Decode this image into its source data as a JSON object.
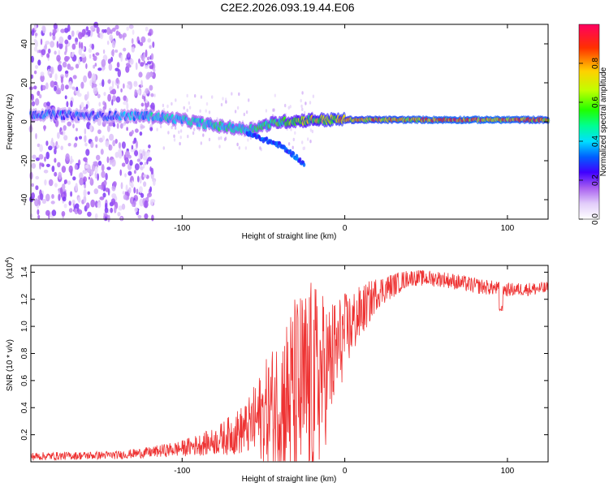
{
  "title": "C2E2.2026.093.19.44.E06",
  "chart_data": [
    {
      "type": "heatmap",
      "name": "spectrogram",
      "xlabel": "Height of straight line (km)",
      "ylabel": "Frequency (Hz)",
      "xlim": [
        -193,
        125
      ],
      "ylim": [
        -50,
        50
      ],
      "xticks": [
        -100,
        0,
        100
      ],
      "xtick_labels": [
        "-100",
        "0",
        "100"
      ],
      "yticks": [
        -40,
        -20,
        0,
        20,
        40
      ],
      "ytick_labels": [
        "-40",
        "-20",
        "0",
        "20",
        "40"
      ],
      "colorbar": {
        "label": "Normalized spectral amplitude",
        "range": [
          0,
          1
        ],
        "ticks": [
          0.0,
          0.2,
          0.4,
          0.6,
          0.8
        ],
        "tick_labels": [
          "0.0",
          "0.2",
          "0.4",
          "0.6",
          "0.8"
        ]
      },
      "main_ridge": [
        {
          "x": -193,
          "f": 4,
          "amp": 0.35
        },
        {
          "x": -150,
          "f": 3,
          "amp": 0.3
        },
        {
          "x": -120,
          "f": 3,
          "amp": 0.45
        },
        {
          "x": -100,
          "f": 1,
          "amp": 0.45
        },
        {
          "x": -80,
          "f": -2,
          "amp": 0.5
        },
        {
          "x": -60,
          "f": -4,
          "amp": 0.5
        },
        {
          "x": -40,
          "f": 0,
          "amp": 0.6
        },
        {
          "x": -20,
          "f": 1,
          "amp": 0.7
        },
        {
          "x": 0,
          "f": 1,
          "amp": 0.8
        },
        {
          "x": 30,
          "f": 1,
          "amp": 0.85
        },
        {
          "x": 60,
          "f": 1,
          "amp": 0.9
        },
        {
          "x": 100,
          "f": 1,
          "amp": 0.9
        },
        {
          "x": 125,
          "f": 1,
          "amp": 0.85
        }
      ],
      "branch": [
        {
          "x": -60,
          "f": -6
        },
        {
          "x": -40,
          "f": -12
        },
        {
          "x": -30,
          "f": -18
        },
        {
          "x": -25,
          "f": -22
        }
      ],
      "noise_region_x": [
        -193,
        -117
      ]
    },
    {
      "type": "line",
      "name": "snr",
      "xlabel": "Height of straight line (km)",
      "ylabel": "SNR (10 * v/v)",
      "multiplier": "(x10",
      "multiplier_exp": "4",
      "multiplier_close": ")",
      "xlim": [
        -193,
        125
      ],
      "ylim": [
        0,
        1.45
      ],
      "xticks": [
        -100,
        0,
        100
      ],
      "xtick_labels": [
        "-100",
        "0",
        "100"
      ],
      "yticks": [
        0.2,
        0.4,
        0.6,
        0.8,
        1.0,
        1.2,
        1.4
      ],
      "ytick_labels": [
        "0.2",
        "0.4",
        "0.6",
        "0.8",
        "1.0",
        "1.2",
        "1.4"
      ],
      "color": "#ee3333",
      "envelope": [
        {
          "x": -193,
          "base": 0.04,
          "spread": 0.03
        },
        {
          "x": -140,
          "base": 0.05,
          "spread": 0.03
        },
        {
          "x": -120,
          "base": 0.07,
          "spread": 0.04
        },
        {
          "x": -100,
          "base": 0.1,
          "spread": 0.06
        },
        {
          "x": -80,
          "base": 0.15,
          "spread": 0.1
        },
        {
          "x": -60,
          "base": 0.25,
          "spread": 0.2
        },
        {
          "x": -45,
          "base": 0.4,
          "spread": 0.45
        },
        {
          "x": -30,
          "base": 0.5,
          "spread": 0.75
        },
        {
          "x": -20,
          "base": 0.55,
          "spread": 0.8
        },
        {
          "x": -10,
          "base": 0.7,
          "spread": 0.5
        },
        {
          "x": 0,
          "base": 0.95,
          "spread": 0.3
        },
        {
          "x": 10,
          "base": 1.1,
          "spread": 0.2
        },
        {
          "x": 20,
          "base": 1.25,
          "spread": 0.12
        },
        {
          "x": 40,
          "base": 1.36,
          "spread": 0.06
        },
        {
          "x": 60,
          "base": 1.35,
          "spread": 0.06
        },
        {
          "x": 80,
          "base": 1.3,
          "spread": 0.06
        },
        {
          "x": 100,
          "base": 1.27,
          "spread": 0.05
        },
        {
          "x": 125,
          "base": 1.28,
          "spread": 0.05
        }
      ],
      "dips": [
        {
          "x": 96,
          "y": 1.1
        }
      ]
    }
  ]
}
